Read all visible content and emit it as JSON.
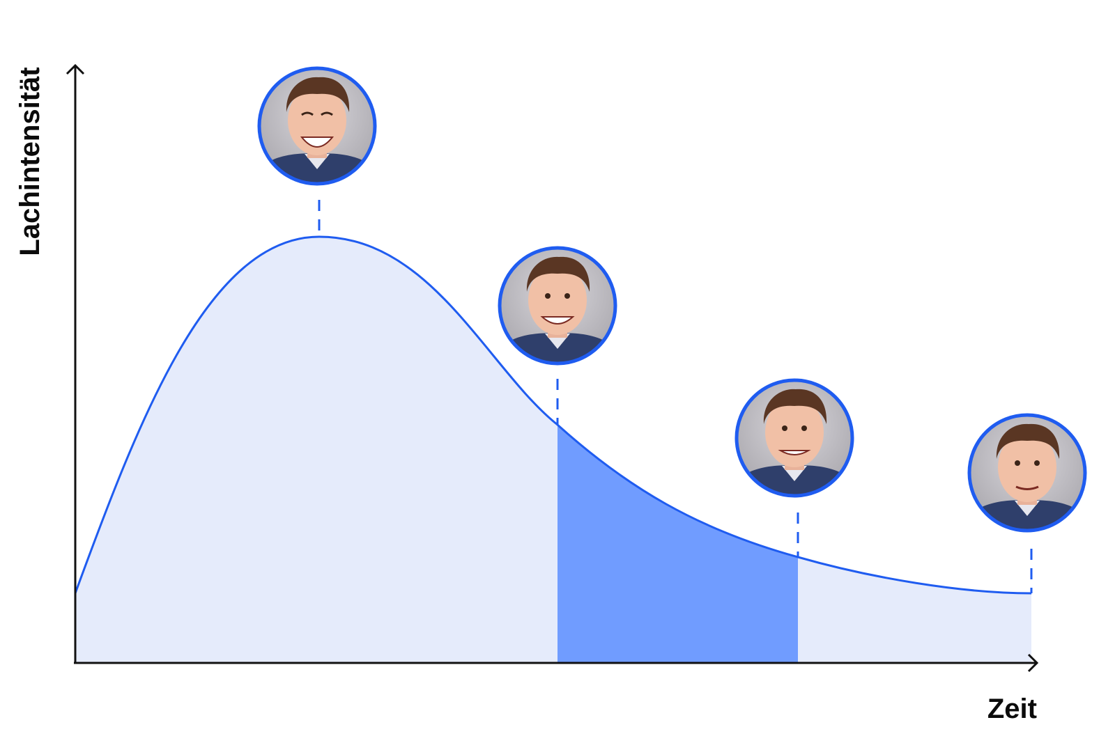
{
  "diagram": {
    "y_axis_label": "Lachintensität",
    "x_axis_label": "Zeit",
    "colors": {
      "curve": "#1f5cf0",
      "area_light": "#e5ebfb",
      "area_highlight": "#709cff",
      "axis": "#111111",
      "portrait_ring": "#1f5cf0",
      "portrait_background": "#c9c7cd"
    },
    "portraits": [
      {
        "name": "portrait-big-laugh",
        "expression": "big-laugh"
      },
      {
        "name": "portrait-broad-grin",
        "expression": "broad-grin"
      },
      {
        "name": "portrait-smile",
        "expression": "smile"
      },
      {
        "name": "portrait-slight-smile",
        "expression": "slight-smile"
      }
    ]
  }
}
